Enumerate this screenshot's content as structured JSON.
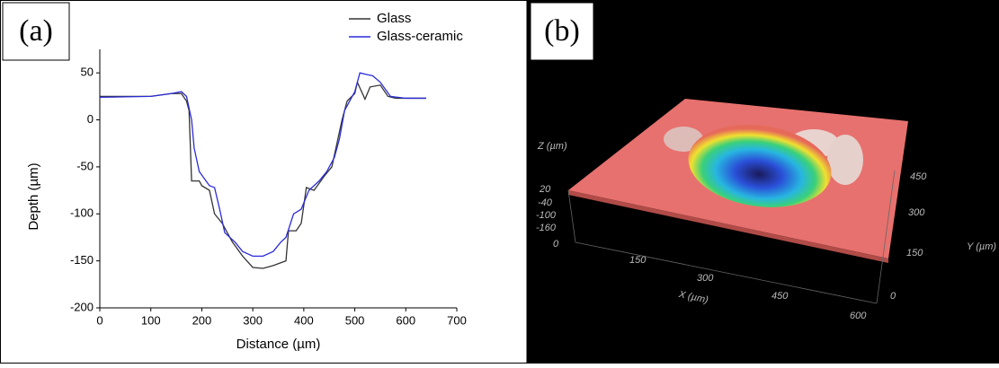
{
  "panel_a_label": "(a)",
  "chart_data": {
    "type": "line",
    "xlabel": "Distance (µm)",
    "ylabel": "Depth (µm)",
    "xlim": [
      0,
      700
    ],
    "ylim": [
      -200,
      75
    ],
    "xticks": [
      0,
      100,
      200,
      300,
      400,
      500,
      600,
      700
    ],
    "yticks": [
      -200,
      -150,
      -100,
      -50,
      0,
      50
    ],
    "legend": "top-right",
    "series": [
      {
        "name": "Glass",
        "color": "#333333",
        "x": [
          0,
          100,
          140,
          160,
          170,
          175,
          180,
          195,
          200,
          215,
          225,
          240,
          260,
          280,
          300,
          320,
          340,
          365,
          370,
          385,
          395,
          405,
          420,
          440,
          455,
          465,
          475,
          485,
          500,
          505,
          520,
          530,
          550,
          565,
          580,
          640
        ],
        "values": [
          25,
          25,
          28,
          28,
          20,
          10,
          -65,
          -65,
          -70,
          -75,
          -100,
          -110,
          -130,
          -145,
          -157,
          -158,
          -155,
          -150,
          -118,
          -118,
          -110,
          -72,
          -75,
          -60,
          -50,
          -25,
          0,
          20,
          28,
          40,
          22,
          35,
          37,
          25,
          23,
          23
        ]
      },
      {
        "name": "Glass-ceramic",
        "color": "#2b2bd9",
        "x": [
          0,
          100,
          140,
          160,
          170,
          180,
          185,
          195,
          215,
          225,
          235,
          245,
          265,
          280,
          300,
          320,
          340,
          355,
          365,
          380,
          395,
          410,
          430,
          445,
          460,
          470,
          480,
          490,
          500,
          510,
          525,
          535,
          550,
          570,
          600,
          640
        ],
        "values": [
          24,
          25,
          28,
          30,
          25,
          0,
          -30,
          -55,
          -70,
          -72,
          -95,
          -120,
          -130,
          -140,
          -145,
          -145,
          -140,
          -130,
          -125,
          -100,
          -95,
          -75,
          -65,
          -55,
          -40,
          -20,
          10,
          20,
          30,
          50,
          48,
          47,
          40,
          25,
          23,
          23
        ]
      }
    ]
  },
  "panel_b": {
    "label": "(b)",
    "z_title": "Z (µm)",
    "z_ticks": [
      "20",
      "-40",
      "-100",
      "-160"
    ],
    "x_title": "X (µm)",
    "x_ticks": [
      "0",
      "150",
      "300",
      "450",
      "600"
    ],
    "y_title": "Y (µm)",
    "y_ticks": [
      "0",
      "150",
      "300",
      "450"
    ]
  }
}
